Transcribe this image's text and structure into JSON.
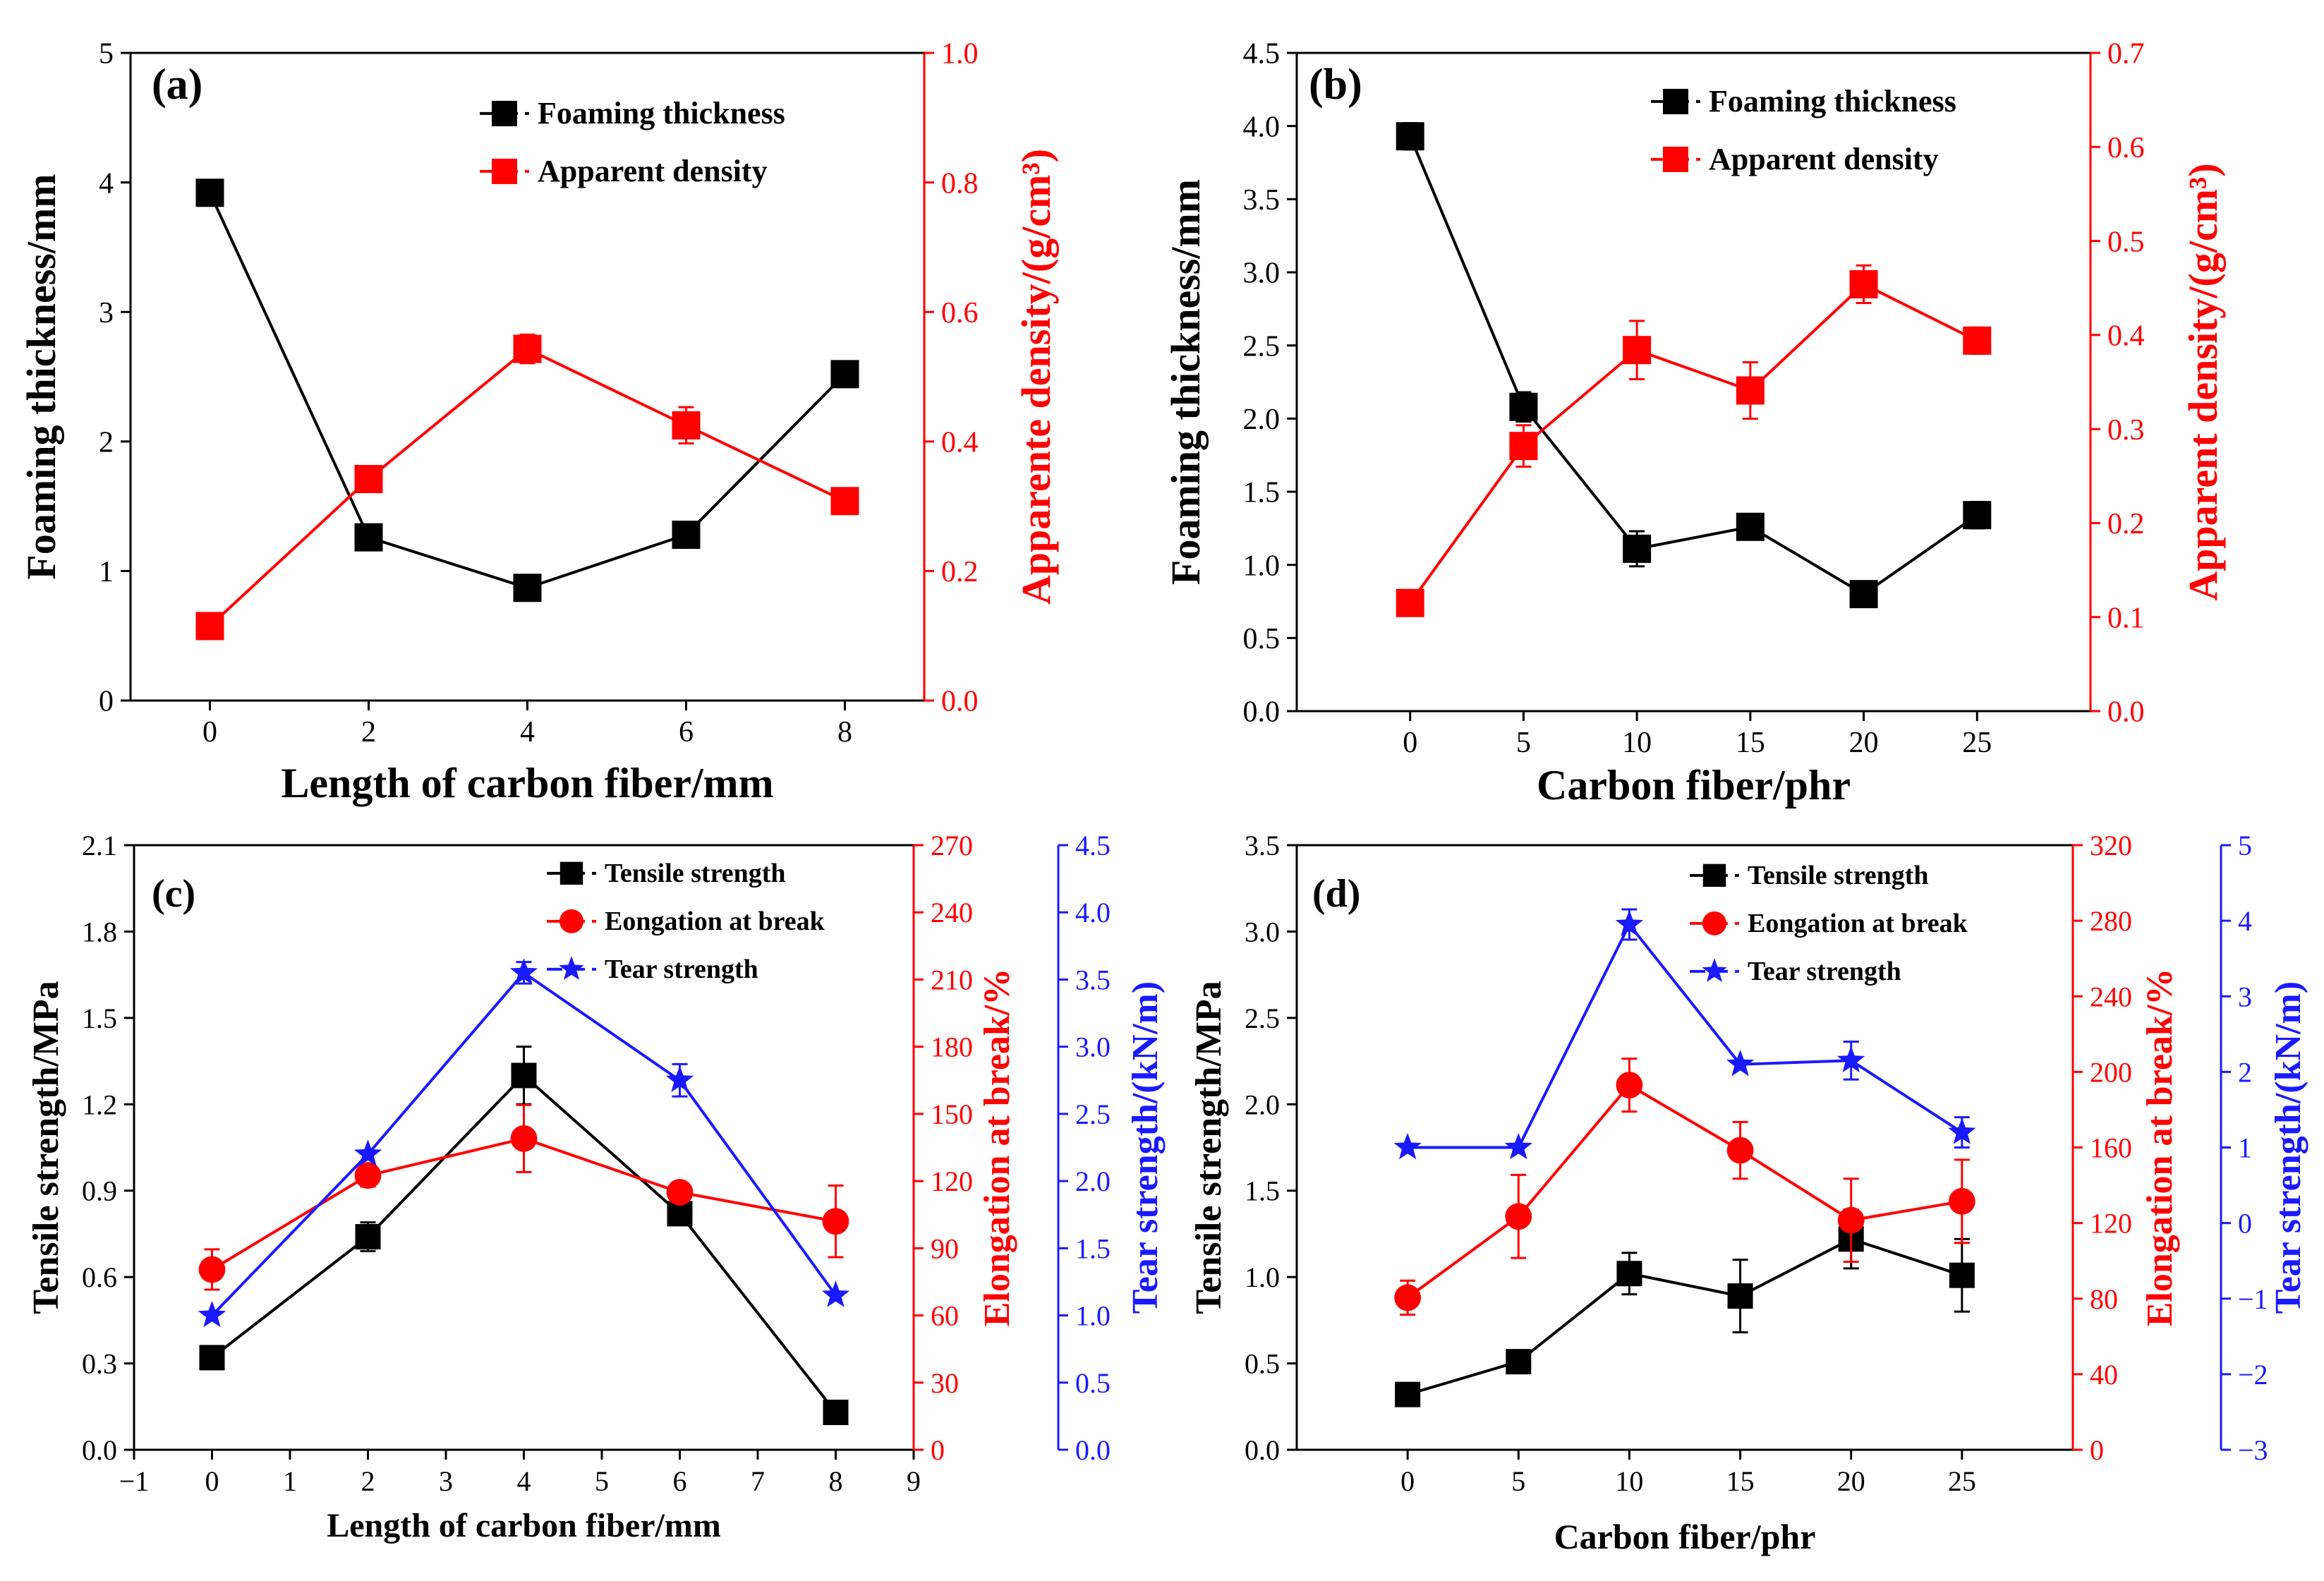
{
  "colors": {
    "black": "#000000",
    "red": "#ff0000",
    "blue": "#1a1aff"
  },
  "chart_data": [
    {
      "id": "a",
      "panel_label": "(a)",
      "type": "line",
      "xlabel": "Length of carbon fiber/mm",
      "xlim": [
        -1,
        9
      ],
      "xticks": [
        0,
        2,
        4,
        6,
        8
      ],
      "xtick_labels": [
        "0",
        "2",
        "4",
        "6",
        "8"
      ],
      "axes": [
        {
          "side": "left",
          "label": "Foaming thickness/mm",
          "lim": [
            0,
            5
          ],
          "ticks": [
            "0",
            "1",
            "2",
            "3",
            "4",
            "5"
          ],
          "tick_values": [
            0,
            1,
            2,
            3,
            4,
            5
          ],
          "color": "#000000"
        },
        {
          "side": "right",
          "label": "Apparente density/(g/cm³)",
          "lim": [
            0,
            1
          ],
          "ticks": [
            "0.0",
            "0.2",
            "0.4",
            "0.6",
            "0.8",
            "1.0"
          ],
          "tick_values": [
            0,
            0.2,
            0.4,
            0.6,
            0.8,
            1.0
          ],
          "color": "#ff0000"
        }
      ],
      "series": [
        {
          "name": "Foaming thickness",
          "axis": 0,
          "color": "#000000",
          "marker": "square",
          "x": [
            0,
            2,
            4,
            6,
            8
          ],
          "y": [
            3.92,
            1.26,
            0.87,
            1.28,
            2.52
          ],
          "err": [
            0.08,
            0.07,
            0.06,
            0.1,
            0.09
          ]
        },
        {
          "name": "Apparent density",
          "axis": 1,
          "color": "#ff0000",
          "marker": "square",
          "x": [
            0,
            2,
            4,
            6,
            8
          ],
          "y": [
            0.115,
            0.342,
            0.543,
            0.425,
            0.308
          ],
          "err": [
            0.01,
            0.016,
            0.022,
            0.028,
            0.018
          ]
        }
      ]
    },
    {
      "id": "b",
      "panel_label": "(b)",
      "type": "line",
      "xlabel": "Carbon fiber/phr",
      "xlim": [
        -5,
        30
      ],
      "xticks": [
        0,
        5,
        10,
        15,
        20,
        25
      ],
      "xtick_labels": [
        "0",
        "5",
        "10",
        "15",
        "20",
        "25"
      ],
      "axes": [
        {
          "side": "left",
          "label": "Foaming thickness/mm",
          "lim": [
            0,
            4.5
          ],
          "ticks": [
            "0.0",
            "0.5",
            "1.0",
            "1.5",
            "2.0",
            "2.5",
            "3.0",
            "3.5",
            "4.0",
            "4.5"
          ],
          "tick_values": [
            0,
            0.5,
            1,
            1.5,
            2,
            2.5,
            3,
            3.5,
            4,
            4.5
          ],
          "color": "#000000"
        },
        {
          "side": "right",
          "label": "Apparent density/(g/cm³)",
          "lim": [
            0,
            0.7
          ],
          "ticks": [
            "0.0",
            "0.1",
            "0.2",
            "0.3",
            "0.4",
            "0.5",
            "0.6",
            "0.7"
          ],
          "tick_values": [
            0,
            0.1,
            0.2,
            0.3,
            0.4,
            0.5,
            0.6,
            0.7
          ],
          "color": "#ff0000"
        }
      ],
      "series": [
        {
          "name": "Foaming thickness",
          "axis": 0,
          "color": "#000000",
          "marker": "square",
          "x": [
            0,
            5,
            10,
            15,
            20,
            25
          ],
          "y": [
            3.93,
            2.08,
            1.11,
            1.26,
            0.8,
            1.34
          ],
          "err": [
            0.09,
            0.1,
            0.12,
            0.07,
            0.08,
            0.09
          ]
        },
        {
          "name": "Apparent density",
          "axis": 1,
          "color": "#ff0000",
          "marker": "square",
          "x": [
            0,
            5,
            10,
            15,
            20,
            25
          ],
          "y": [
            0.115,
            0.282,
            0.384,
            0.341,
            0.454,
            0.394
          ],
          "err": [
            0.01,
            0.022,
            0.031,
            0.03,
            0.02,
            0.014
          ]
        }
      ]
    },
    {
      "id": "c",
      "panel_label": "(c)",
      "type": "line",
      "xlabel": "Length of carbon fiber/mm",
      "xlim": [
        -1,
        9
      ],
      "xticks": [
        -1,
        0,
        1,
        2,
        3,
        4,
        5,
        6,
        7,
        8,
        9
      ],
      "xtick_labels": [
        "−1",
        "0",
        "1",
        "2",
        "3",
        "4",
        "5",
        "6",
        "7",
        "8",
        "9"
      ],
      "axes": [
        {
          "side": "left",
          "label": "Tensile strength/MPa",
          "lim": [
            0,
            2.1
          ],
          "ticks": [
            "0.0",
            "0.3",
            "0.6",
            "0.9",
            "1.2",
            "1.5",
            "1.8",
            "2.1"
          ],
          "tick_values": [
            0,
            0.3,
            0.6,
            0.9,
            1.2,
            1.5,
            1.8,
            2.1
          ],
          "color": "#000000"
        },
        {
          "side": "right",
          "label": "Elongation at break/%",
          "lim": [
            0,
            270
          ],
          "ticks": [
            "0",
            "30",
            "60",
            "90",
            "120",
            "150",
            "180",
            "210",
            "240",
            "270"
          ],
          "tick_values": [
            0,
            30,
            60,
            90,
            120,
            150,
            180,
            210,
            240,
            270
          ],
          "color": "#ff0000"
        },
        {
          "side": "right2",
          "label": "Tear strength/(kN/m)",
          "lim": [
            0,
            4.5
          ],
          "ticks": [
            "0.0",
            "0.5",
            "1.0",
            "1.5",
            "2.0",
            "2.5",
            "3.0",
            "3.5",
            "4.0",
            "4.5"
          ],
          "tick_values": [
            0,
            0.5,
            1,
            1.5,
            2,
            2.5,
            3,
            3.5,
            4,
            4.5
          ],
          "color": "#1a1aff"
        }
      ],
      "series": [
        {
          "name": "Tensile strength",
          "axis": 0,
          "color": "#000000",
          "marker": "square",
          "x": [
            0,
            2,
            4,
            6,
            8
          ],
          "y": [
            0.32,
            0.74,
            1.3,
            0.82,
            0.13
          ],
          "err": [
            0,
            0.05,
            0.1,
            0,
            0
          ]
        },
        {
          "name": "Eongation at break",
          "axis": 1,
          "color": "#ff0000",
          "marker": "circle",
          "x": [
            0,
            2,
            4,
            6,
            8
          ],
          "y": [
            80.5,
            122.5,
            139,
            115,
            102
          ],
          "err": [
            9,
            5,
            15,
            3,
            16
          ]
        },
        {
          "name": "Tear strength",
          "axis": 2,
          "color": "#1a1aff",
          "marker": "star",
          "x": [
            0,
            2,
            4,
            6,
            8
          ],
          "y": [
            1.0,
            2.2,
            3.55,
            2.75,
            1.15
          ],
          "err": [
            0,
            0,
            0.08,
            0.12,
            0
          ]
        }
      ]
    },
    {
      "id": "d",
      "panel_label": "(d)",
      "type": "line",
      "xlabel": "Carbon fiber/phr",
      "xlim": [
        -5,
        30
      ],
      "xticks": [
        0,
        5,
        10,
        15,
        20,
        25
      ],
      "xtick_labels": [
        "0",
        "5",
        "10",
        "15",
        "20",
        "25"
      ],
      "axes": [
        {
          "side": "left",
          "label": "Tensile strength/MPa",
          "lim": [
            0,
            3.5
          ],
          "ticks": [
            "0.0",
            "0.5",
            "1.0",
            "1.5",
            "2.0",
            "2.5",
            "3.0",
            "3.5"
          ],
          "tick_values": [
            0,
            0.5,
            1,
            1.5,
            2,
            2.5,
            3,
            3.5
          ],
          "color": "#000000"
        },
        {
          "side": "right",
          "label": "Elongation at break/%",
          "lim": [
            0,
            320
          ],
          "ticks": [
            "0",
            "40",
            "80",
            "120",
            "160",
            "200",
            "240",
            "280",
            "320"
          ],
          "tick_values": [
            0,
            40,
            80,
            120,
            160,
            200,
            240,
            280,
            320
          ],
          "color": "#ff0000"
        },
        {
          "side": "right2",
          "label": "Tear strength/(kN/m)",
          "lim": [
            -3,
            5
          ],
          "ticks": [
            "−3",
            "−2",
            "−1",
            "0",
            "1",
            "2",
            "3",
            "4",
            "5"
          ],
          "tick_values": [
            -3,
            -2,
            -1,
            0,
            1,
            2,
            3,
            4,
            5
          ],
          "color": "#1a1aff"
        }
      ],
      "series": [
        {
          "name": "Tensile strength",
          "axis": 0,
          "color": "#000000",
          "marker": "square",
          "x": [
            0,
            5,
            10,
            15,
            20,
            25
          ],
          "y": [
            0.32,
            0.51,
            1.02,
            0.89,
            1.22,
            1.01
          ],
          "err": [
            0,
            0.06,
            0.12,
            0.21,
            0.17,
            0.21
          ]
        },
        {
          "name": "Eongation at break",
          "axis": 1,
          "color": "#ff0000",
          "marker": "circle",
          "x": [
            0,
            5,
            10,
            15,
            20,
            25
          ],
          "y": [
            80.5,
            123.5,
            193,
            158.5,
            121.5,
            131.5
          ],
          "err": [
            9,
            22,
            14,
            15,
            22,
            22
          ]
        },
        {
          "name": "Tear strength",
          "axis": 2,
          "color": "#1a1aff",
          "marker": "star",
          "x": [
            0,
            5,
            10,
            15,
            20,
            25
          ],
          "y": [
            1.0,
            1.0,
            3.95,
            2.1,
            2.15,
            1.2
          ],
          "err": [
            0,
            0,
            0.2,
            0,
            0.25,
            0.2
          ]
        }
      ]
    }
  ]
}
